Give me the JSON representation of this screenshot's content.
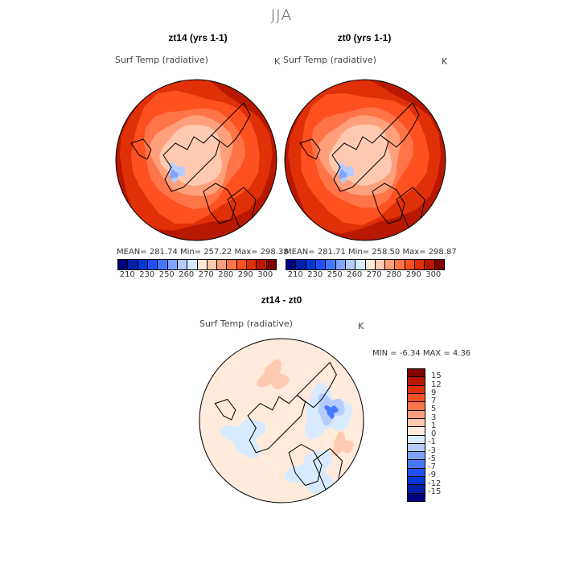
{
  "title": "JJA",
  "panels": [
    {
      "title": "zt14 (yrs 1-1)",
      "variable": "Surf Temp (radiative)",
      "units": "K",
      "stats": "MEAN= 281.74   Min= 257.22   Max= 298.38"
    },
    {
      "title": "zt0 (yrs 1-1)",
      "variable": "Surf Temp (radiative)",
      "units": "K",
      "stats": "MEAN= 281.71   Min= 258.50   Max= 298.87"
    },
    {
      "title": "zt14 - zt0",
      "variable": "Surf Temp (radiative)",
      "units": "K",
      "stats": "MIN =   -6.34  MAX =    4.36"
    }
  ],
  "abs_colorbar": {
    "ticks": [
      "210",
      "230",
      "250",
      "260",
      "270",
      "280",
      "290",
      "300"
    ],
    "colors": [
      "#000080",
      "#0020a8",
      "#0038d8",
      "#1e50ff",
      "#4678ff",
      "#80a4ff",
      "#b4ccff",
      "#d8eaff",
      "#ffeadc",
      "#ffcab0",
      "#ffa07c",
      "#ff7448",
      "#ff5020",
      "#e03008",
      "#b81800",
      "#800000"
    ]
  },
  "diff_colorbar": {
    "ticks": [
      "15",
      "12",
      "9",
      "7",
      "5",
      "3",
      "1",
      "0",
      "-1",
      "-3",
      "-5",
      "-7",
      "-9",
      "-12",
      "-15"
    ],
    "colors": [
      "#800000",
      "#b81800",
      "#e03008",
      "#ff5020",
      "#ff7448",
      "#ffa07c",
      "#ffcab0",
      "#ffeadc",
      "#d8eaff",
      "#b4ccff",
      "#80a4ff",
      "#4678ff",
      "#1e50ff",
      "#0038d8",
      "#0020a8",
      "#000080"
    ]
  }
}
